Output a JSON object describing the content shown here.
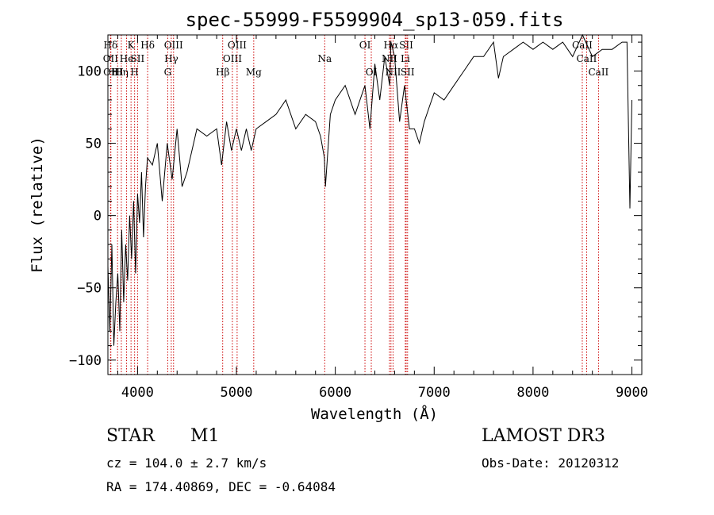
{
  "chart_data": {
    "type": "line",
    "title": "spec-55999-F5599904_sp13-059.fits",
    "xlabel": "Wavelength (Å)",
    "ylabel": "Flux (relative)",
    "xlim": [
      3700,
      9100
    ],
    "ylim": [
      -110,
      125
    ],
    "xticks": [
      4000,
      5000,
      6000,
      7000,
      8000,
      9000
    ],
    "yticks": [
      -100,
      -50,
      0,
      50,
      100
    ],
    "series": [
      {
        "x": [
          3700,
          3720,
          3740,
          3760,
          3780,
          3800,
          3820,
          3840,
          3860,
          3880,
          3900,
          3920,
          3940,
          3960,
          3980,
          4000,
          4020,
          4040,
          4060,
          4080,
          4100,
          4150,
          4200,
          4250,
          4300,
          4350,
          4400,
          4450,
          4500,
          4600,
          4700,
          4800,
          4850,
          4900,
          4950,
          5000,
          5050,
          5100,
          5150,
          5200,
          5300,
          5400,
          5500,
          5600,
          5700,
          5800,
          5850,
          5890,
          5900,
          5950,
          6000,
          6100,
          6200,
          6300,
          6350,
          6400,
          6450,
          6500,
          6550,
          6563,
          6600,
          6650,
          6700,
          6750,
          6800,
          6850,
          6900,
          6950,
          7000,
          7100,
          7200,
          7300,
          7400,
          7500,
          7600,
          7650,
          7700,
          7800,
          7900,
          8000,
          8100,
          8200,
          8300,
          8400,
          8500,
          8600,
          8700,
          8800,
          8900,
          8950,
          8980,
          9000
        ],
        "y": [
          -35,
          -80,
          -20,
          -90,
          -60,
          -40,
          -80,
          -10,
          -60,
          -20,
          -45,
          0,
          -30,
          10,
          -40,
          15,
          -5,
          30,
          -15,
          20,
          40,
          35,
          50,
          10,
          50,
          25,
          60,
          20,
          30,
          60,
          55,
          60,
          35,
          65,
          45,
          60,
          45,
          60,
          45,
          60,
          65,
          70,
          80,
          60,
          70,
          65,
          55,
          40,
          20,
          70,
          80,
          90,
          70,
          90,
          60,
          105,
          80,
          110,
          90,
          120,
          110,
          65,
          90,
          60,
          60,
          50,
          65,
          75,
          85,
          80,
          90,
          100,
          110,
          110,
          120,
          95,
          110,
          115,
          120,
          115,
          120,
          115,
          120,
          110,
          125,
          110,
          115,
          115,
          120,
          120,
          5,
          80
        ]
      }
    ],
    "lines": [
      {
        "name": "Hδ",
        "x": 3727,
        "row": 0
      },
      {
        "name": "OII",
        "x": 3727,
        "row": 1
      },
      {
        "name": "OII",
        "x": 3730,
        "row": 2
      },
      {
        "name": "HI",
        "x": 3798,
        "row": 2
      },
      {
        "name": "Hη",
        "x": 3836,
        "row": 2
      },
      {
        "name": "He",
        "x": 3889,
        "row": 1
      },
      {
        "name": "K",
        "x": 3934,
        "row": 0
      },
      {
        "name": "H",
        "x": 3970,
        "row": 2
      },
      {
        "name": "SII",
        "x": 4000,
        "row": 1
      },
      {
        "name": "Hδ",
        "x": 4102,
        "row": 0
      },
      {
        "name": "OIII",
        "x": 4364,
        "row": 0
      },
      {
        "name": "Hγ",
        "x": 4341,
        "row": 1
      },
      {
        "name": "G",
        "x": 4305,
        "row": 2
      },
      {
        "name": "Hβ",
        "x": 4861,
        "row": 2
      },
      {
        "name": "OIII",
        "x": 4959,
        "row": 1
      },
      {
        "name": "OIII",
        "x": 5007,
        "row": 0
      },
      {
        "name": "Mg",
        "x": 5175,
        "row": 2
      },
      {
        "name": "Na",
        "x": 5893,
        "row": 1
      },
      {
        "name": "OI",
        "x": 6300,
        "row": 0
      },
      {
        "name": "OI",
        "x": 6364,
        "row": 2
      },
      {
        "name": "Hα",
        "x": 6563,
        "row": 0
      },
      {
        "name": "NII",
        "x": 6548,
        "row": 1
      },
      {
        "name": "NII",
        "x": 6584,
        "row": 2
      },
      {
        "name": "SII",
        "x": 6717,
        "row": 0
      },
      {
        "name": "Li",
        "x": 6708,
        "row": 1
      },
      {
        "name": "SII",
        "x": 6731,
        "row": 2
      },
      {
        "name": "CaII",
        "x": 8498,
        "row": 0
      },
      {
        "name": "CaII",
        "x": 8542,
        "row": 1
      },
      {
        "name": "CaII",
        "x": 8662,
        "row": 2
      }
    ],
    "line_color": "#cc0000"
  },
  "info": {
    "object_class": "STAR",
    "subclass": "M1",
    "survey": "LAMOST DR3",
    "cz": "cz = 104.0 ± 2.7 km/s",
    "obs_date": "Obs-Date: 20120312",
    "coords": "RA = 174.40869, DEC =  -0.64084"
  }
}
